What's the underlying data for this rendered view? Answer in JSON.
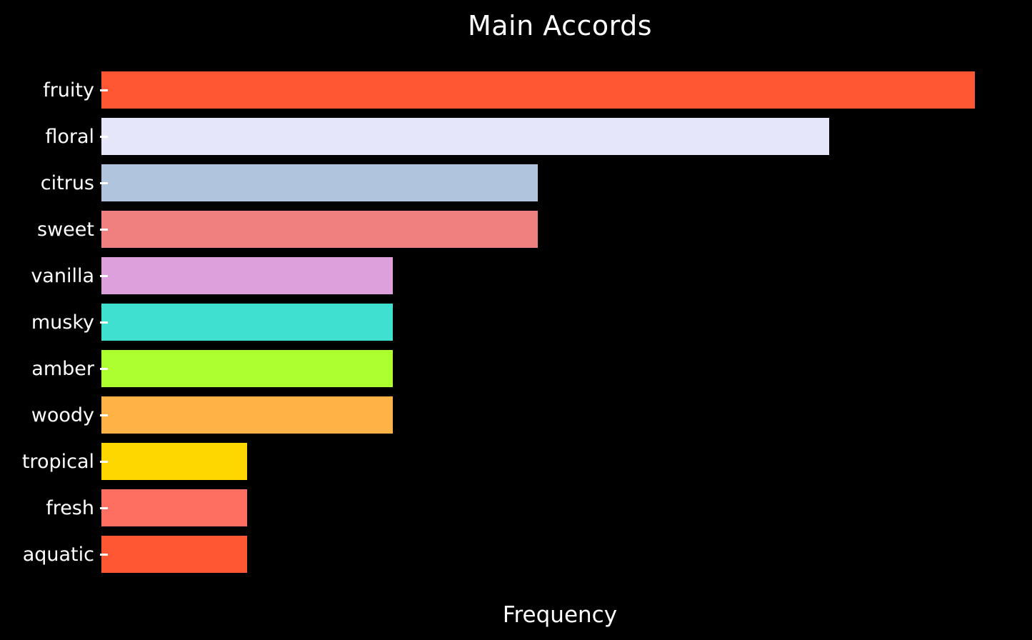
{
  "chart_data": {
    "type": "bar",
    "orientation": "horizontal",
    "title": "Main Accords",
    "xlabel": "Frequency",
    "ylabel": "",
    "categories": [
      "fruity",
      "floral",
      "citrus",
      "sweet",
      "vanilla",
      "musky",
      "amber",
      "woody",
      "tropical",
      "fresh",
      "aquatic"
    ],
    "values": [
      6,
      5,
      3,
      3,
      2,
      2,
      2,
      2,
      1,
      1,
      1
    ],
    "bar_colors": [
      "#FF5733",
      "#E6E6FA",
      "#B0C4DE",
      "#F08080",
      "#DDA0DD",
      "#40E0D0",
      "#ADFF2F",
      "#FFB347",
      "#FFD700",
      "#FF6F61",
      "#FF5733"
    ],
    "xlim": [
      0,
      6.3
    ],
    "grid": false,
    "legend": null,
    "background_color": "#000000",
    "text_color": "#ffffff"
  }
}
